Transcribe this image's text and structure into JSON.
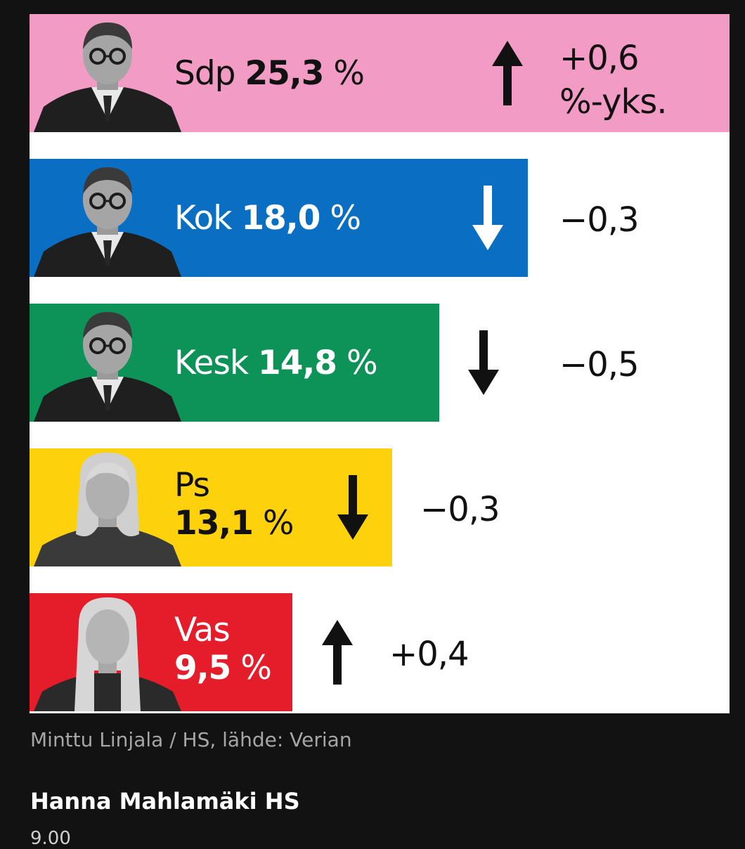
{
  "chart_data": {
    "type": "bar",
    "orientation": "horizontal",
    "title": "",
    "xlabel": "",
    "ylabel": "",
    "unit": "%",
    "xlim": [
      0,
      25.3
    ],
    "grid": false,
    "legend": "none",
    "categories": [
      "Sdp",
      "Kok",
      "Kesk",
      "Ps",
      "Vas"
    ],
    "values": [
      25.3,
      18.0,
      14.8,
      13.1,
      9.5
    ],
    "value_labels": [
      "25,3 %",
      "18,0 %",
      "14,8 %",
      "13,1 %",
      "9,5 %"
    ],
    "changes": [
      0.6,
      -0.3,
      -0.5,
      -0.3,
      0.4
    ],
    "change_labels": [
      "+0,6",
      "−0,3",
      "−0,5",
      "−0,3",
      "+0,4"
    ],
    "change_unit": "%-yks.",
    "colors": [
      "#f29bc4",
      "#0a6fc2",
      "#0d9257",
      "#fdd20d",
      "#e51d2b"
    ],
    "label_colors": [
      "#111111",
      "#ffffff",
      "#ffffff",
      "#111111",
      "#ffffff"
    ],
    "arrow_colors": [
      "#111111",
      "#ffffff",
      "#111111",
      "#111111",
      "#111111"
    ]
  },
  "credit": "Minttu Linjala / HS, lähde: Verian",
  "author": "Hanna Mahlamäki HS",
  "cut_line": "9.00"
}
